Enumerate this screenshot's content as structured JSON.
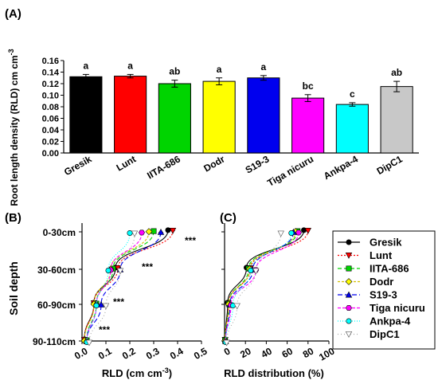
{
  "colors": {
    "Gresik": "#000000",
    "Lunt": "#ff0000",
    "IITA-686": "#00d400",
    "Dodr": "#ffff00",
    "S19-3": "#0000ee",
    "Tiga nicuru": "#ff00ff",
    "Ankpa-4": "#00ffff",
    "DipC1": "#c8c8c8"
  },
  "chart_data": [
    {
      "panel": "(A)",
      "type": "bar",
      "ylabel": "Root length density (RLD) cm cm",
      "ylabel_sup": "-3",
      "ylim": [
        0,
        0.16
      ],
      "yticks": [
        "0.00",
        "0.02",
        "0.04",
        "0.06",
        "0.08",
        "0.10",
        "0.12",
        "0.14",
        "0.16"
      ],
      "categories": [
        "Gresik",
        "Lunt",
        "IITA-686",
        "Dodr",
        "S19-3",
        "Tiga nicuru",
        "Ankpa-4",
        "DipC1"
      ],
      "values": [
        0.132,
        0.133,
        0.12,
        0.124,
        0.13,
        0.095,
        0.084,
        0.115
      ],
      "errors": [
        0.004,
        0.003,
        0.006,
        0.006,
        0.004,
        0.006,
        0.003,
        0.009
      ],
      "letters": [
        "a",
        "a",
        "ab",
        "a",
        "a",
        "bc",
        "c",
        "ab"
      ]
    },
    {
      "panel": "(B)",
      "type": "line",
      "ylabel": "Soil depth",
      "xlabel": "RLD (cm cm",
      "xlabel_sup": "-3",
      "xlabel_end": ")",
      "xlim": [
        0,
        0.5
      ],
      "xticks": [
        "0.0",
        "0.1",
        "0.2",
        "0.3",
        "0.4",
        "0.5"
      ],
      "depths": [
        "0-30cm",
        "30-60cm",
        "60-90cm",
        "90-110cm"
      ],
      "significance": [
        "***",
        "***",
        "***",
        "***"
      ],
      "series": [
        {
          "name": "Gresik",
          "values": [
            0.36,
            0.14,
            0.05,
            0.01
          ]
        },
        {
          "name": "Lunt",
          "values": [
            0.38,
            0.15,
            0.05,
            0.01
          ]
        },
        {
          "name": "IITA-686",
          "values": [
            0.3,
            0.13,
            0.06,
            0.02
          ]
        },
        {
          "name": "Dodr",
          "values": [
            0.28,
            0.12,
            0.05,
            0.01
          ]
        },
        {
          "name": "S19-3",
          "values": [
            0.33,
            0.16,
            0.08,
            0.02
          ]
        },
        {
          "name": "Tiga nicuru",
          "values": [
            0.25,
            0.12,
            0.06,
            0.02
          ]
        },
        {
          "name": "Ankpa-4",
          "values": [
            0.2,
            0.11,
            0.06,
            0.02
          ]
        },
        {
          "name": "DipC1",
          "values": [
            0.22,
            0.16,
            0.1,
            0.03
          ]
        }
      ]
    },
    {
      "panel": "(C)",
      "type": "line",
      "xlabel": "RLD distribution (%)",
      "xlim": [
        0,
        100
      ],
      "xticks": [
        "0",
        "20",
        "40",
        "60",
        "80",
        "100"
      ],
      "depths": [
        "0-30cm",
        "30-60cm",
        "60-90cm",
        "90-110cm"
      ],
      "series": [
        {
          "name": "Gresik",
          "values": [
            76,
            21,
            3,
            0.5
          ]
        },
        {
          "name": "Lunt",
          "values": [
            80,
            25,
            4,
            0.5
          ]
        },
        {
          "name": "IITA-686",
          "values": [
            70,
            23,
            4,
            0.5
          ]
        },
        {
          "name": "Dodr",
          "values": [
            68,
            24,
            4,
            0.5
          ]
        },
        {
          "name": "S19-3",
          "values": [
            66,
            27,
            5,
            1
          ]
        },
        {
          "name": "Tiga nicuru",
          "values": [
            71,
            30,
            6,
            1
          ]
        },
        {
          "name": "Ankpa-4",
          "values": [
            64,
            25,
            8,
            1
          ]
        },
        {
          "name": "DipC1",
          "values": [
            54,
            30,
            12,
            2
          ]
        }
      ]
    }
  ]
}
